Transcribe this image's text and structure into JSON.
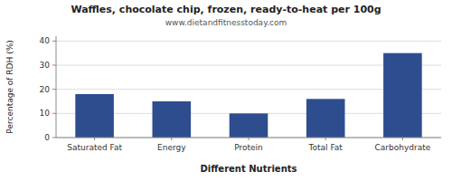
{
  "chart_data": {
    "type": "bar",
    "title": "Waffles, chocolate chip, frozen, ready-to-heat per 100g",
    "subtitle": "www.dietandfitnesstoday.com",
    "categories": [
      "Saturated Fat",
      "Energy",
      "Protein",
      "Total Fat",
      "Carbohydrate"
    ],
    "values": [
      18,
      15,
      10,
      16,
      35
    ],
    "color": "#2e4d8f",
    "xlabel": "Different Nutrients",
    "ylabel": "Percentage of RDH (%)",
    "ylim": [
      0,
      42
    ],
    "yticks": [
      0,
      10,
      20,
      30,
      40
    ],
    "grid": true
  }
}
